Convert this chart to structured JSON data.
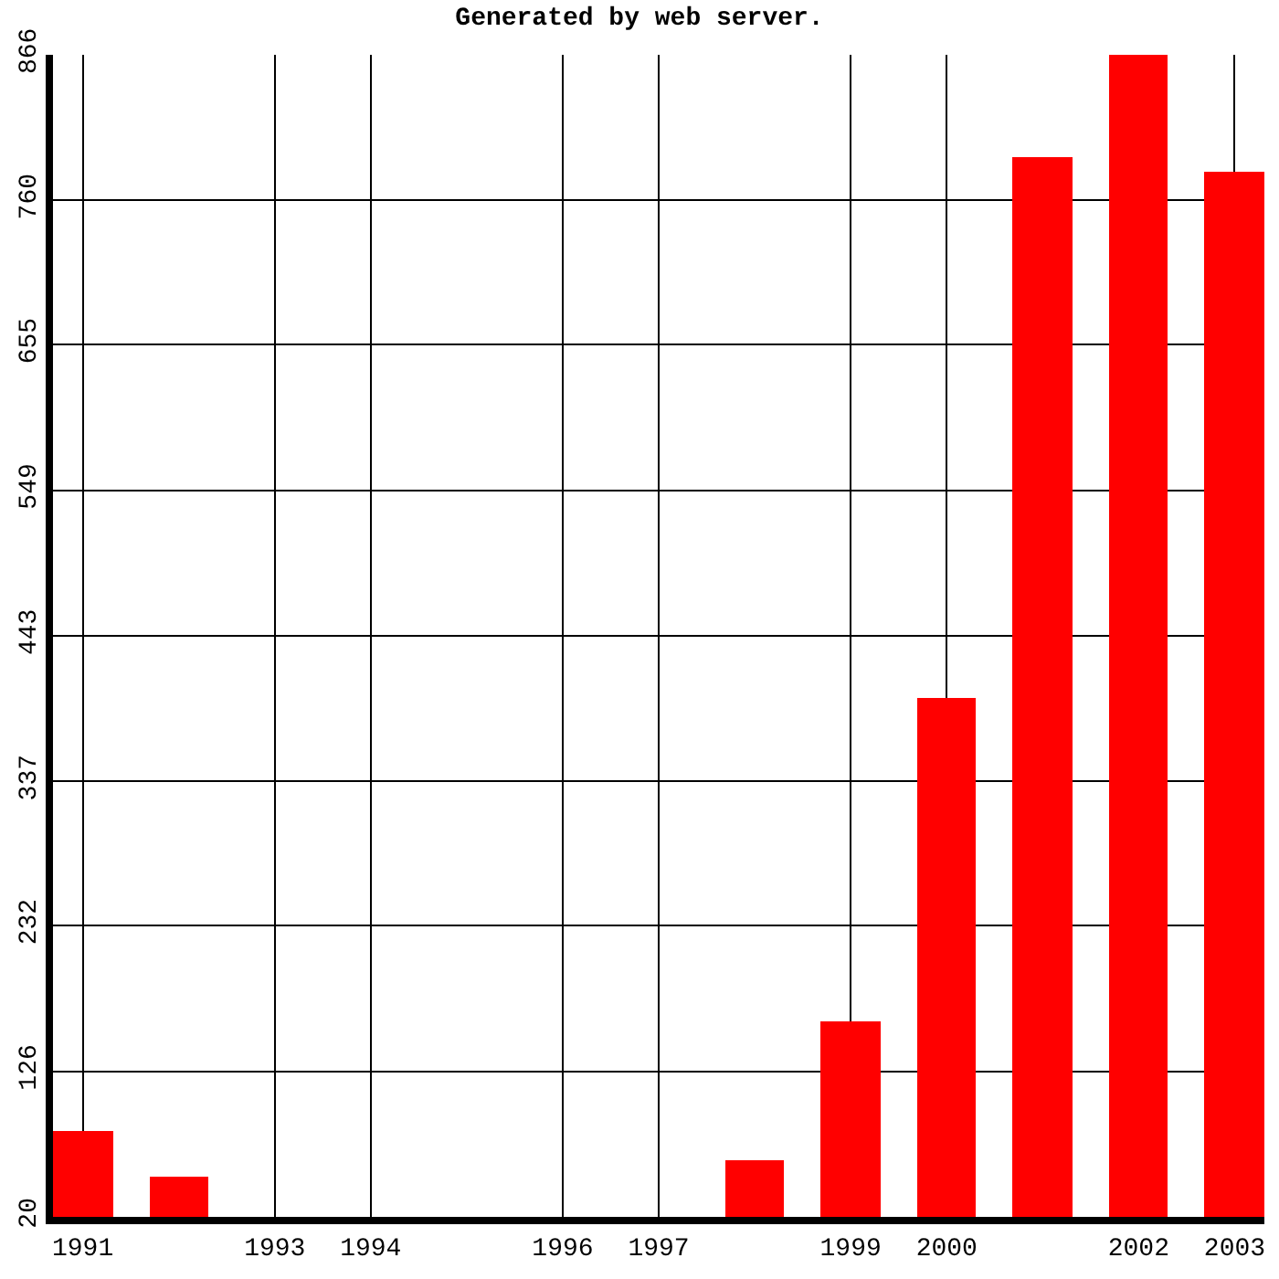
{
  "chart_data": {
    "type": "bar",
    "title": "Generated by web server.",
    "x": [
      1991,
      1992,
      1998,
      1999,
      2000,
      2001,
      2002,
      2003
    ],
    "values": [
      82,
      49,
      61,
      163,
      398,
      791,
      866,
      781
    ],
    "color": "#ff0000",
    "xlim": [
      1991,
      2003
    ],
    "xticks": [
      1991,
      1993,
      1994,
      1996,
      1997,
      1999,
      2000,
      2002,
      2003
    ],
    "ylim": [
      20,
      866
    ],
    "yticks": [
      20,
      126,
      232,
      337,
      443,
      549,
      655,
      760,
      866
    ],
    "grid": true
  }
}
